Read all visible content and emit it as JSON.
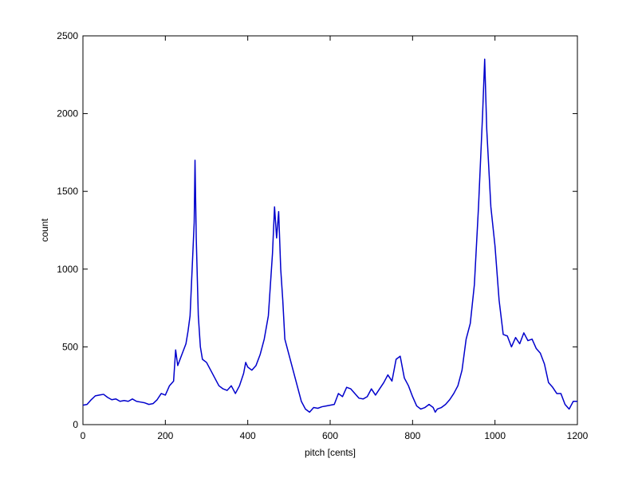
{
  "chart_data": {
    "type": "line",
    "xlabel": "pitch [cents]",
    "ylabel": "count",
    "x": [
      0,
      10,
      20,
      30,
      40,
      50,
      60,
      70,
      80,
      90,
      100,
      110,
      120,
      130,
      140,
      150,
      160,
      170,
      180,
      190,
      200,
      210,
      220,
      225,
      230,
      240,
      250,
      255,
      260,
      265,
      270,
      272,
      275,
      280,
      285,
      290,
      300,
      310,
      320,
      330,
      340,
      350,
      360,
      370,
      380,
      390,
      395,
      400,
      410,
      420,
      430,
      440,
      450,
      455,
      460,
      465,
      470,
      475,
      480,
      485,
      490,
      500,
      510,
      520,
      530,
      540,
      550,
      560,
      570,
      580,
      590,
      600,
      610,
      620,
      630,
      640,
      650,
      660,
      670,
      680,
      690,
      700,
      710,
      720,
      730,
      740,
      750,
      760,
      770,
      780,
      790,
      800,
      810,
      820,
      830,
      840,
      850,
      855,
      860,
      870,
      880,
      890,
      900,
      910,
      920,
      930,
      940,
      950,
      960,
      970,
      975,
      980,
      990,
      1000,
      1010,
      1020,
      1030,
      1040,
      1050,
      1060,
      1070,
      1080,
      1090,
      1100,
      1110,
      1120,
      1130,
      1140,
      1150,
      1160,
      1170,
      1180,
      1190,
      1200
    ],
    "values": [
      125,
      130,
      160,
      185,
      190,
      195,
      175,
      160,
      165,
      150,
      155,
      150,
      165,
      150,
      145,
      140,
      130,
      135,
      160,
      200,
      190,
      250,
      280,
      480,
      380,
      450,
      520,
      600,
      700,
      1000,
      1300,
      1700,
      1200,
      700,
      500,
      420,
      400,
      350,
      300,
      250,
      230,
      220,
      250,
      200,
      250,
      330,
      400,
      370,
      350,
      380,
      450,
      550,
      700,
      900,
      1100,
      1400,
      1200,
      1370,
      1000,
      800,
      550,
      450,
      350,
      250,
      150,
      100,
      80,
      110,
      105,
      115,
      120,
      125,
      130,
      200,
      180,
      240,
      230,
      200,
      170,
      165,
      180,
      230,
      190,
      230,
      270,
      320,
      280,
      420,
      440,
      300,
      250,
      180,
      120,
      100,
      110,
      130,
      110,
      80,
      100,
      110,
      130,
      160,
      200,
      250,
      350,
      550,
      650,
      900,
      1400,
      2000,
      2350,
      1900,
      1400,
      1150,
      800,
      580,
      570,
      500,
      560,
      520,
      590,
      540,
      550,
      490,
      460,
      390,
      270,
      240,
      200,
      200,
      130,
      100,
      150,
      150
    ],
    "color": "#0000cc",
    "xlim": [
      0,
      1200
    ],
    "xticks": [
      0,
      200,
      400,
      600,
      800,
      1000,
      1200
    ],
    "ylim": [
      0,
      2500
    ],
    "yticks": [
      0,
      500,
      1000,
      1500,
      2000,
      2500
    ],
    "grid": false
  }
}
